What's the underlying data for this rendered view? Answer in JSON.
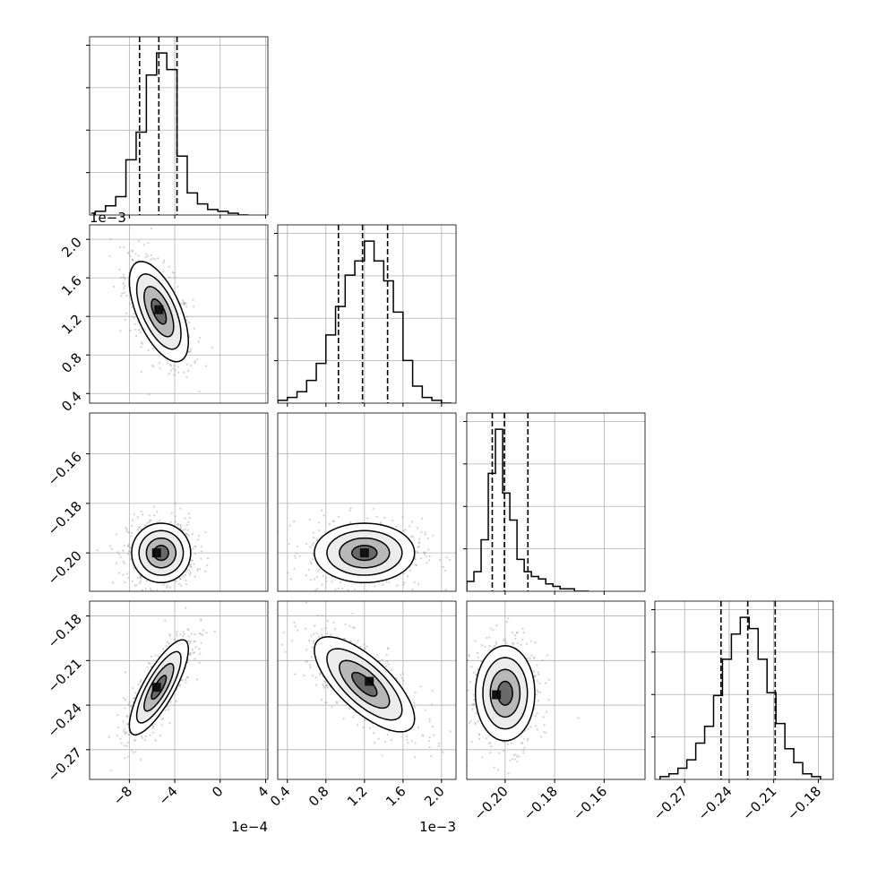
{
  "chart_data": {
    "type": "corner",
    "title": "",
    "legend": "none",
    "grid": true,
    "colors": {
      "line": "#000000",
      "grid": "#b0b0b0",
      "scatter": "#9a9a9a",
      "background": "#ffffff"
    },
    "parameters": [
      {
        "index": 0,
        "range": [
          -11.5,
          4.2
        ],
        "ticks": [
          -8,
          -4,
          0,
          4
        ],
        "tick_labels": [
          "−8",
          "−4",
          "0",
          "4"
        ],
        "offset_label": "1e−4",
        "quantiles": [
          -7.1,
          -5.4,
          -3.8
        ],
        "mean": -5.4,
        "sd": 1.3,
        "hist_edges": [
          -11.0,
          -10.1,
          -9.2,
          -8.3,
          -7.4,
          -6.5,
          -5.6,
          -4.7,
          -3.8,
          -2.9,
          -2.0,
          -1.1,
          -0.2,
          0.7,
          1.6,
          2.5
        ],
        "hist_counts": [
          2,
          5,
          10,
          30,
          45,
          76,
          88,
          79,
          32,
          12,
          6,
          3,
          2,
          1,
          0
        ]
      },
      {
        "index": 1,
        "range": [
          0.3,
          2.15
        ],
        "ticks": [
          0.4,
          0.8,
          1.2,
          1.6,
          2.0
        ],
        "tick_labels": [
          "0.4",
          "0.8",
          "1.2",
          "1.6",
          "2.0"
        ],
        "offset_label": "1e−3",
        "quantiles": [
          0.93,
          1.18,
          1.44
        ],
        "mean": 1.18,
        "sd": 0.26,
        "hist_edges": [
          0.3,
          0.4,
          0.5,
          0.6,
          0.7,
          0.8,
          0.9,
          1.0,
          1.1,
          1.2,
          1.3,
          1.4,
          1.5,
          1.6,
          1.7,
          1.8,
          1.9,
          2.0,
          2.1
        ],
        "hist_counts": [
          1,
          2,
          4,
          8,
          14,
          24,
          34,
          45,
          50,
          57,
          50,
          43,
          32,
          15,
          6,
          2,
          1,
          0
        ]
      },
      {
        "index": 2,
        "range": [
          -0.2155,
          -0.1435
        ],
        "ticks": [
          -0.2,
          -0.18,
          -0.16
        ],
        "tick_labels": [
          "−0.20",
          "−0.18",
          "−0.16"
        ],
        "offset_label": "",
        "quantiles": [
          -0.2052,
          -0.2003,
          -0.1908
        ],
        "mean": -0.2,
        "sd": 0.006,
        "hist_edges": [
          -0.2155,
          -0.2126,
          -0.2097,
          -0.2068,
          -0.2039,
          -0.201,
          -0.1981,
          -0.1952,
          -0.1923,
          -0.1894,
          -0.1865,
          -0.1836,
          -0.1807,
          -0.1778,
          -0.1749,
          -0.172,
          -0.1691,
          -0.1662
        ],
        "hist_counts": [
          4,
          8,
          21,
          48,
          66,
          40,
          29,
          13,
          8,
          6,
          5,
          3,
          2,
          1,
          1,
          0,
          0
        ]
      },
      {
        "index": 3,
        "range": [
          -0.29,
          -0.17
        ],
        "ticks": [
          -0.27,
          -0.24,
          -0.21,
          -0.18
        ],
        "tick_labels": [
          "−0.27",
          "−0.24",
          "−0.21",
          "−0.18"
        ],
        "offset_label": "",
        "quantiles": [
          -0.2455,
          -0.2275,
          -0.209
        ],
        "mean": -0.227,
        "sd": 0.016,
        "hist_edges": [
          -0.2865,
          -0.2805,
          -0.2745,
          -0.2685,
          -0.2625,
          -0.2565,
          -0.2505,
          -0.2445,
          -0.2385,
          -0.2325,
          -0.2265,
          -0.2205,
          -0.2145,
          -0.2085,
          -0.2025,
          -0.1965,
          -0.1905,
          -0.1845,
          -0.1785
        ],
        "hist_counts": [
          1,
          2,
          4,
          7,
          13,
          19,
          30,
          43,
          52,
          58,
          54,
          43,
          31,
          20,
          11,
          6,
          2,
          1
        ]
      }
    ],
    "pairs": [
      {
        "x": 0,
        "y": 1,
        "center": [
          -5.4,
          1.25
        ],
        "corr": -0.6,
        "peak": [
          -5.4,
          1.27
        ]
      },
      {
        "x": 0,
        "y": 2,
        "center": [
          -5.2,
          -0.2
        ],
        "corr": 0.0,
        "peak": [
          -5.6,
          -0.2
        ]
      },
      {
        "x": 1,
        "y": 2,
        "center": [
          1.2,
          -0.2
        ],
        "corr": 0.0,
        "peak": [
          1.2,
          -0.2
        ]
      },
      {
        "x": 0,
        "y": 3,
        "center": [
          -5.4,
          -0.228
        ],
        "corr": 0.8,
        "peak": [
          -5.6,
          -0.228
        ]
      },
      {
        "x": 1,
        "y": 3,
        "center": [
          1.2,
          -0.226
        ],
        "corr": -0.72,
        "peak": [
          1.25,
          -0.224
        ]
      },
      {
        "x": 2,
        "y": 3,
        "center": [
          -0.2,
          -0.232
        ],
        "corr": 0.0,
        "peak": [
          -0.2035,
          -0.233
        ]
      }
    ],
    "contour_levels_sigma": [
      0.5,
      1.0,
      1.5,
      2.0
    ]
  }
}
